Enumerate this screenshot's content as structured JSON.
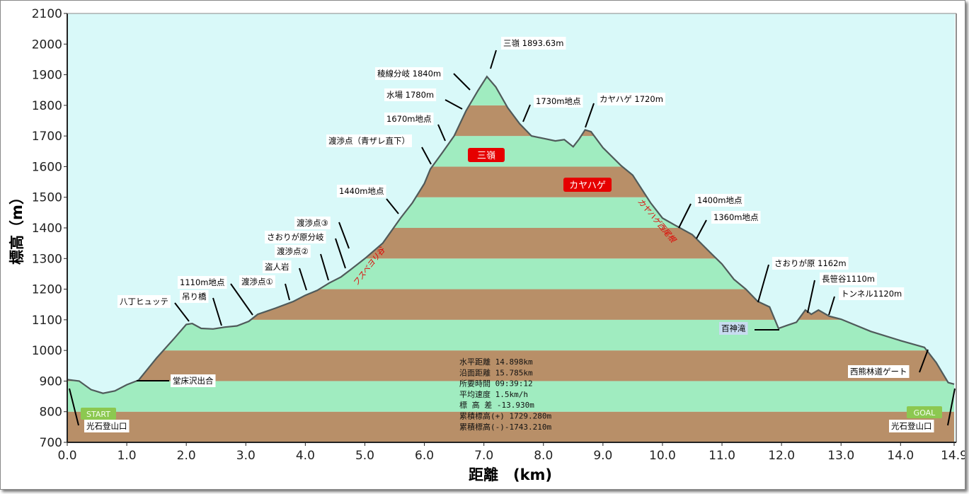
{
  "colors": {
    "sky": "#d9f9f9",
    "green": "#a0ecc0",
    "brown": "#b88f68",
    "line": "#4f5a5a",
    "red": "#e60000",
    "badge": "#8cc850",
    "redText": "#e00000",
    "blueLabel": "#c8dcf0"
  },
  "chart_data": {
    "type": "area",
    "title": "",
    "xlabel": "距離　(km)",
    "ylabel": "標高（m）",
    "xlim": [
      0,
      14.9
    ],
    "ylim": [
      700,
      2100
    ],
    "xticks": [
      "0.0",
      "1.0",
      "2.0",
      "3.0",
      "4.0",
      "5.0",
      "6.0",
      "7.0",
      "8.0",
      "9.0",
      "10.0",
      "11.0",
      "12.0",
      "13.0",
      "14.0",
      "14.9"
    ],
    "yticks": [
      "700",
      "800",
      "900",
      "1000",
      "1100",
      "1200",
      "1300",
      "1400",
      "1500",
      "1600",
      "1700",
      "1800",
      "1900",
      "2000",
      "2100"
    ],
    "profile": [
      [
        0,
        905
      ],
      [
        0.2,
        900
      ],
      [
        0.4,
        872
      ],
      [
        0.6,
        860
      ],
      [
        0.8,
        868
      ],
      [
        1.0,
        888
      ],
      [
        1.2,
        903
      ],
      [
        1.5,
        975
      ],
      [
        1.8,
        1040
      ],
      [
        2.0,
        1085
      ],
      [
        2.1,
        1088
      ],
      [
        2.25,
        1072
      ],
      [
        2.45,
        1070
      ],
      [
        2.65,
        1076
      ],
      [
        2.85,
        1080
      ],
      [
        3.05,
        1095
      ],
      [
        3.2,
        1118
      ],
      [
        3.5,
        1138
      ],
      [
        3.8,
        1160
      ],
      [
        4.0,
        1180
      ],
      [
        4.2,
        1196
      ],
      [
        4.4,
        1220
      ],
      [
        4.6,
        1240
      ],
      [
        4.75,
        1262
      ],
      [
        5.0,
        1300
      ],
      [
        5.3,
        1350
      ],
      [
        5.6,
        1432
      ],
      [
        5.8,
        1482
      ],
      [
        6.0,
        1545
      ],
      [
        6.1,
        1592
      ],
      [
        6.3,
        1645
      ],
      [
        6.5,
        1700
      ],
      [
        6.7,
        1782
      ],
      [
        6.9,
        1848
      ],
      [
        7.05,
        1894
      ],
      [
        7.2,
        1860
      ],
      [
        7.4,
        1792
      ],
      [
        7.6,
        1740
      ],
      [
        7.8,
        1700
      ],
      [
        8.0,
        1692
      ],
      [
        8.2,
        1684
      ],
      [
        8.35,
        1688
      ],
      [
        8.5,
        1665
      ],
      [
        8.6,
        1690
      ],
      [
        8.7,
        1720
      ],
      [
        8.8,
        1714
      ],
      [
        9.0,
        1662
      ],
      [
        9.3,
        1604
      ],
      [
        9.5,
        1572
      ],
      [
        9.8,
        1482
      ],
      [
        10.0,
        1432
      ],
      [
        10.2,
        1410
      ],
      [
        10.5,
        1378
      ],
      [
        10.8,
        1320
      ],
      [
        11.0,
        1282
      ],
      [
        11.2,
        1232
      ],
      [
        11.4,
        1200
      ],
      [
        11.6,
        1160
      ],
      [
        11.8,
        1142
      ],
      [
        11.95,
        1072
      ],
      [
        12.1,
        1082
      ],
      [
        12.25,
        1092
      ],
      [
        12.4,
        1132
      ],
      [
        12.5,
        1118
      ],
      [
        12.62,
        1132
      ],
      [
        12.8,
        1112
      ],
      [
        13.0,
        1102
      ],
      [
        13.5,
        1062
      ],
      [
        14.0,
        1032
      ],
      [
        14.4,
        1010
      ],
      [
        14.6,
        960
      ],
      [
        14.8,
        895
      ],
      [
        14.9,
        890
      ]
    ],
    "waypoints": [
      "三嶺 1893.63m",
      "稜線分岐 1840m",
      "水場 1780m",
      "1670m地点",
      "渡渉点（青ザレ直下）",
      "1440m地点",
      "渡渉点③",
      "さおりが原分岐",
      "渡渉点②",
      "盗人岩",
      "渡渉点①",
      "1110m地点",
      "吊り橋",
      "八丁ヒュッテ",
      "堂床沢出合",
      "光石登山口",
      "1730m地点",
      "カヤハゲ 1720m",
      "1400m地点",
      "1360m地点",
      "さおりが原 1162m",
      "長笹谷1110m",
      "トンネル1120m",
      "百神滝",
      "西熊林道ゲート",
      "光石登山口"
    ],
    "peak_labels": [
      "三嶺",
      "カヤハゲ"
    ],
    "route_labels": [
      "フスベヨリ谷",
      "カヤハゲ西尾根"
    ],
    "start": "START",
    "goal": "GOAL",
    "stats": [
      "水平距離 14.898km",
      "沿面距離 15.785km",
      "所要時間 09:39:12",
      "平均速度 1.5km/h",
      "標 高 差 -13.930m",
      "累積標高(+) 1729.280m",
      "累積標高(-)-1743.210m"
    ]
  }
}
